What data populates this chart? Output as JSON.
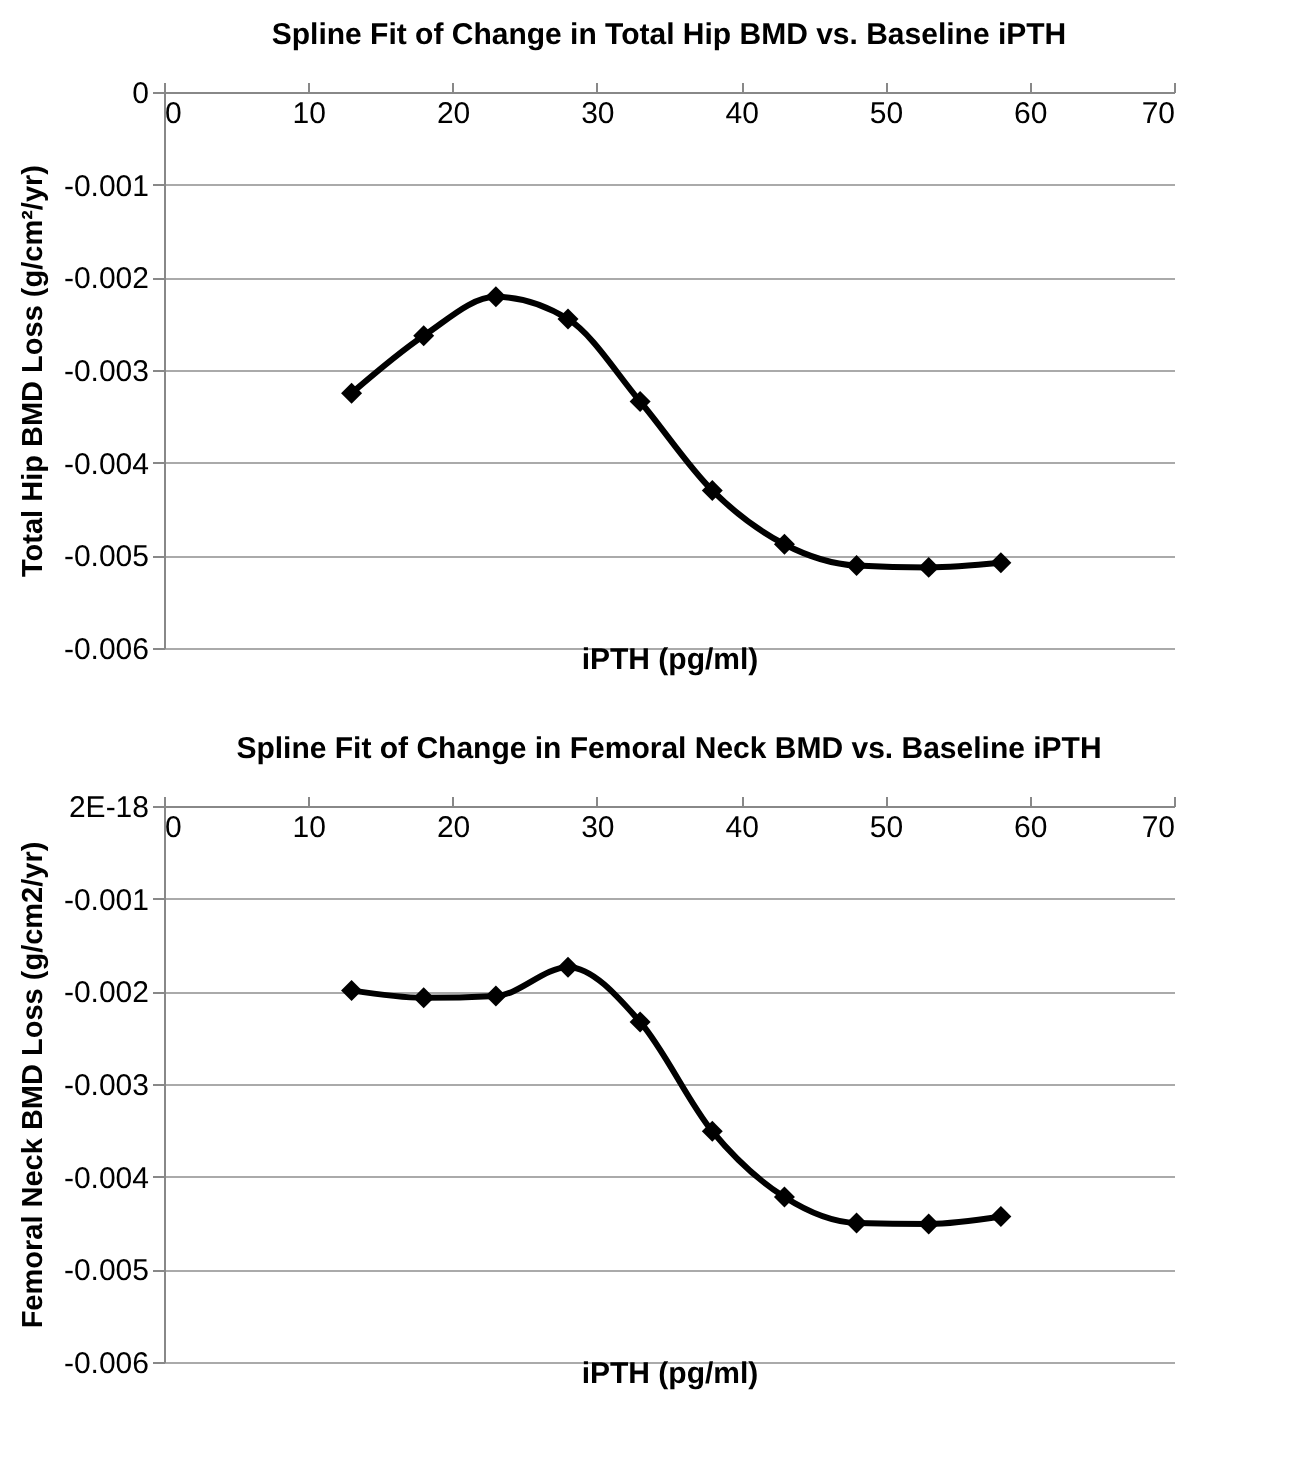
{
  "chart_data": [
    {
      "type": "line",
      "title": "Spline Fit of Change in Total Hip BMD vs. Baseline iPTH",
      "xlabel": "iPTH (pg/ml)",
      "ylabel": "Total Hip BMD Loss (g/cm²/yr)",
      "x": [
        13,
        18,
        23,
        28,
        33,
        38,
        43,
        48,
        53,
        58
      ],
      "series": [
        {
          "color": "#000000",
          "values": [
            -0.00325,
            -0.00263,
            -0.00221,
            -0.00245,
            -0.00334,
            -0.0043,
            -0.00488,
            -0.00511,
            -0.00513,
            -0.00508
          ]
        }
      ],
      "xlim": [
        0,
        70
      ],
      "xticks": [
        0,
        10,
        20,
        30,
        40,
        50,
        60,
        70
      ],
      "ylim": [
        -0.006,
        0
      ],
      "yticks": [
        -0.006,
        -0.005,
        -0.004,
        -0.003,
        -0.002,
        -0.001,
        0
      ],
      "grid": "y",
      "marker": "diamond",
      "line_style": "solid"
    },
    {
      "type": "line",
      "title": "Spline Fit of Change in Femoral Neck BMD vs. Baseline iPTH",
      "xlabel": "iPTH (pg/ml)",
      "ylabel": "Femoral Neck BMD Loss (g/cm2/yr)",
      "x": [
        13,
        18,
        23,
        28,
        33,
        38,
        43,
        48,
        53,
        58
      ],
      "series": [
        {
          "color": "#000000",
          "values": [
            -0.00199,
            -0.00207,
            -0.00205,
            -0.00174,
            -0.00233,
            -0.00351,
            -0.00422,
            -0.0045,
            -0.00451,
            -0.00443
          ]
        }
      ],
      "xlim": [
        0,
        70
      ],
      "xticks": [
        0,
        10,
        20,
        30,
        40,
        50,
        60,
        70
      ],
      "ylim": [
        -0.006,
        0
      ],
      "yticks": [
        -0.006,
        -0.005,
        -0.004,
        -0.003,
        -0.002,
        -0.001,
        {
          "value": 0,
          "label": "2E-18"
        }
      ],
      "grid": "y",
      "marker": "diamond",
      "line_style": "solid"
    }
  ]
}
